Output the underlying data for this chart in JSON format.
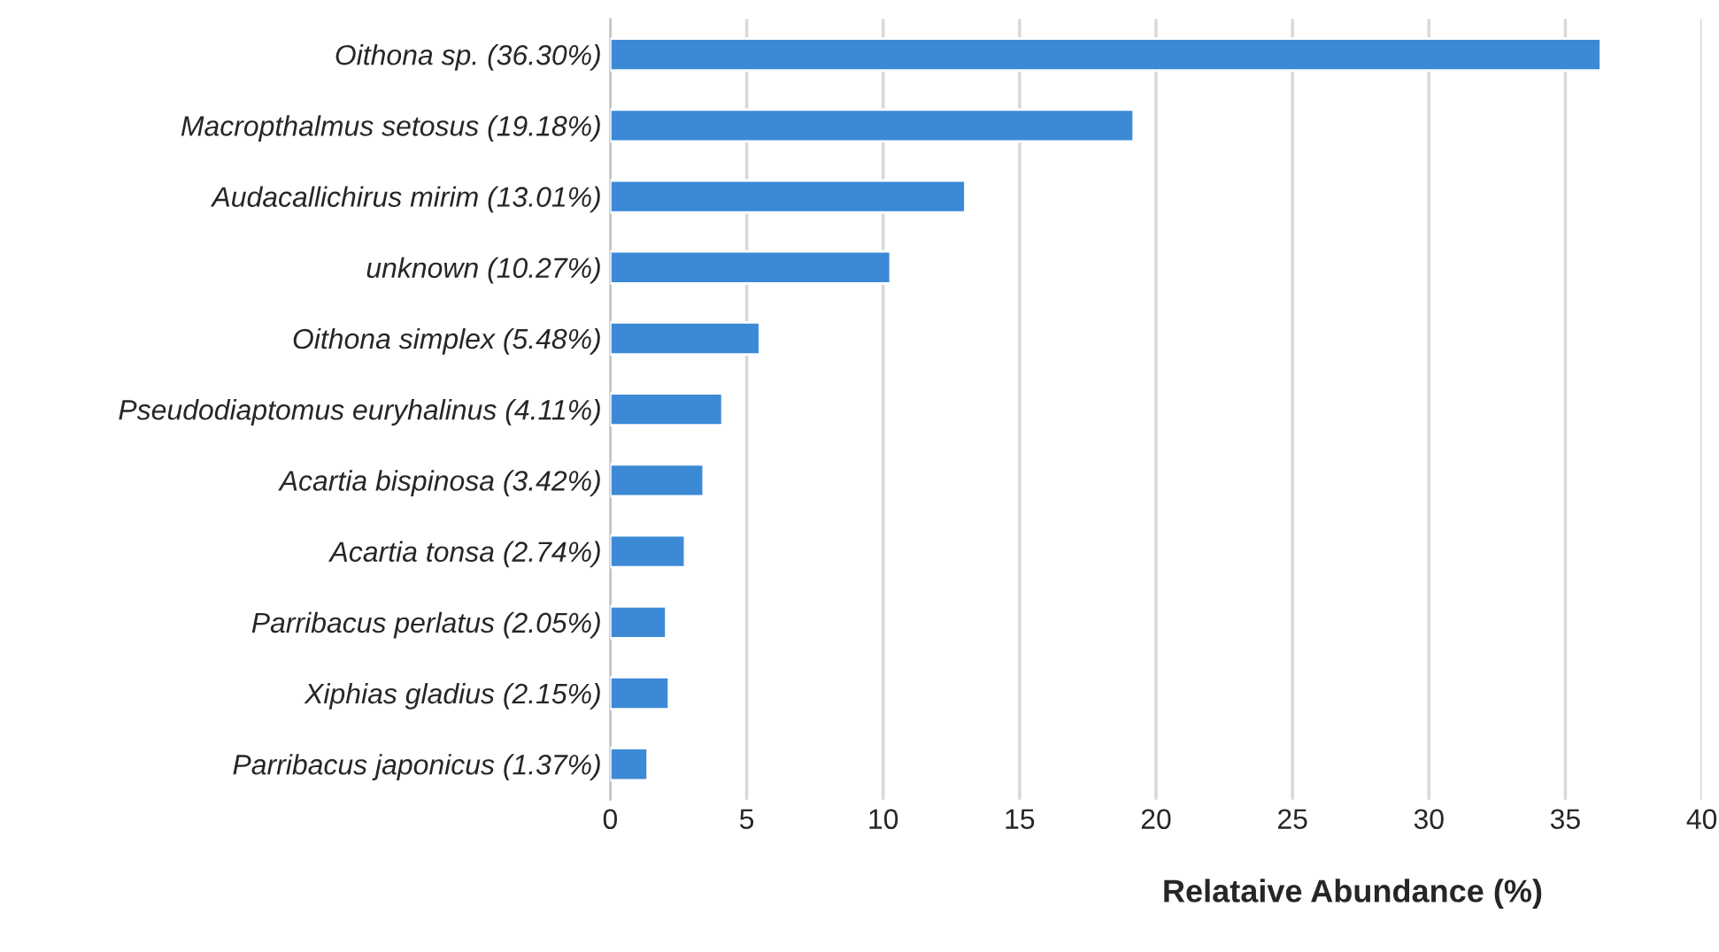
{
  "chart_data": {
    "type": "bar",
    "orientation": "horizontal",
    "xlabel": "Relataive Abundance (%)",
    "categories": [
      "Oithona sp. (36.30%)",
      "Macropthalmus setosus (19.18%)",
      "Audacallichirus mirim (13.01%)",
      "unknown (10.27%)",
      "Oithona simplex (5.48%)",
      "Pseudodiaptomus euryhalinus (4.11%)",
      "Acartia bispinosa (3.42%)",
      "Acartia tonsa (2.74%)",
      "Parribacus perlatus (2.05%)",
      "Xiphias gladius (2.15%)",
      "Parribacus japonicus (1.37%)"
    ],
    "values": [
      36.3,
      19.18,
      13.01,
      10.27,
      5.48,
      4.11,
      3.42,
      2.74,
      2.05,
      2.15,
      1.37
    ],
    "color": "#3c8ad6",
    "xlim": [
      0,
      40
    ],
    "xticks": [
      0,
      5,
      10,
      15,
      20,
      25,
      30,
      35,
      40
    ],
    "grid": "x"
  }
}
